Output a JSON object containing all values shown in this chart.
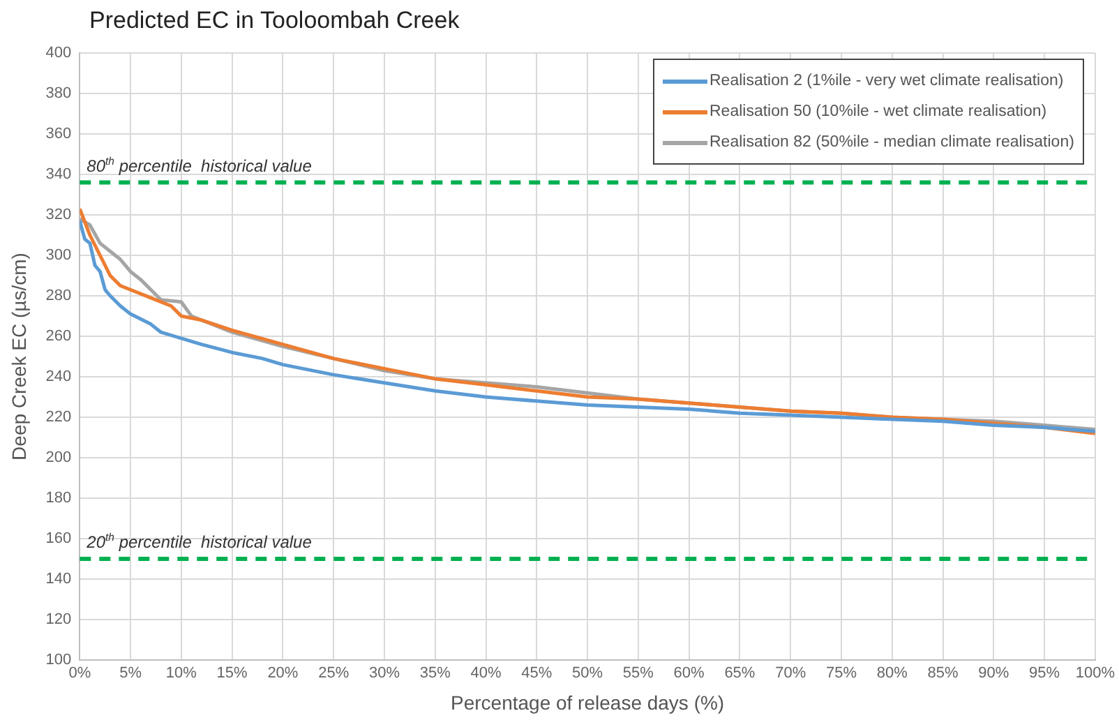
{
  "chart_data": {
    "type": "line",
    "title": "Predicted EC in Tooloombah Creek",
    "xlabel": "Percentage of release days (%)",
    "ylabel": "Deep Creek EC (µs/cm)",
    "xlim": [
      0,
      100
    ],
    "xticks": [
      {
        "value": 0,
        "label": "0%"
      },
      {
        "value": 5,
        "label": "5%"
      },
      {
        "value": 10,
        "label": "10%"
      },
      {
        "value": 15,
        "label": "15%"
      },
      {
        "value": 20,
        "label": "20%"
      },
      {
        "value": 25,
        "label": "25%"
      },
      {
        "value": 30,
        "label": "30%"
      },
      {
        "value": 35,
        "label": "35%"
      },
      {
        "value": 40,
        "label": "40%"
      },
      {
        "value": 45,
        "label": "45%"
      },
      {
        "value": 50,
        "label": "50%"
      },
      {
        "value": 55,
        "label": "55%"
      },
      {
        "value": 60,
        "label": "60%"
      },
      {
        "value": 65,
        "label": "65%"
      },
      {
        "value": 70,
        "label": "70%"
      },
      {
        "value": 75,
        "label": "75%"
      },
      {
        "value": 80,
        "label": "80%"
      },
      {
        "value": 85,
        "label": "85%"
      },
      {
        "value": 90,
        "label": "90%"
      },
      {
        "value": 95,
        "label": "95%"
      },
      {
        "value": 100,
        "label": "100%"
      }
    ],
    "ylim": [
      100,
      400
    ],
    "yticks": [
      100,
      120,
      140,
      160,
      180,
      200,
      220,
      240,
      260,
      280,
      300,
      320,
      340,
      360,
      380,
      400
    ],
    "grid": true,
    "legend": "top right",
    "marker": "none",
    "line_style": "solid",
    "series": [
      {
        "name": "Realisation 2 (1%ile - very wet climate realisation)",
        "color": "#5b9bd5",
        "x": [
          0,
          0.5,
          1,
          1.5,
          2,
          2.5,
          3,
          4,
          5,
          7,
          8,
          10,
          12,
          15,
          18,
          20,
          25,
          30,
          35,
          40,
          45,
          50,
          55,
          60,
          65,
          70,
          75,
          80,
          85,
          90,
          95,
          100
        ],
        "values": [
          317,
          308,
          306,
          295,
          292,
          283,
          280,
          275,
          271,
          266,
          262,
          259,
          256,
          252,
          249,
          246,
          241,
          237,
          233,
          230,
          228,
          226,
          225,
          224,
          222,
          221,
          220,
          219,
          218,
          216,
          215,
          213
        ]
      },
      {
        "name": "Realisation 50 (10%ile - wet climate realisation)",
        "color": "#ed7d31",
        "x": [
          0,
          1,
          2,
          3,
          4,
          5,
          7,
          9,
          10,
          12,
          15,
          20,
          25,
          30,
          35,
          40,
          45,
          50,
          55,
          60,
          65,
          70,
          75,
          80,
          85,
          90,
          95,
          100
        ],
        "values": [
          323,
          310,
          300,
          290,
          285,
          283,
          279,
          275,
          270,
          268,
          263,
          256,
          249,
          244,
          239,
          236,
          233,
          230,
          229,
          227,
          225,
          223,
          222,
          220,
          219,
          217,
          215,
          212
        ]
      },
      {
        "name": "Realisation 82 (50%ile - median climate realisation)",
        "color": "#a5a5a5",
        "x": [
          0,
          1,
          2,
          3,
          4,
          5,
          6,
          7,
          8,
          10,
          11,
          12,
          15,
          20,
          25,
          30,
          35,
          40,
          45,
          50,
          55,
          60,
          65,
          70,
          75,
          80,
          85,
          90,
          95,
          100
        ],
        "values": [
          318,
          315,
          306,
          302,
          298,
          292,
          288,
          283,
          278,
          277,
          270,
          268,
          262,
          255,
          249,
          243,
          239,
          237,
          235,
          232,
          229,
          227,
          225,
          223,
          222,
          220,
          219,
          218,
          216,
          214
        ]
      }
    ],
    "ref_lines": [
      {
        "axis": "y",
        "value": 336,
        "label": "80$^{th}$ percentile  historical value",
        "color": "#00b050",
        "line_style": "dashed"
      },
      {
        "axis": "y",
        "value": 150,
        "label": "20$^{th}$ percentile  historical value",
        "color": "#00b050",
        "line_style": "dashed"
      }
    ]
  }
}
